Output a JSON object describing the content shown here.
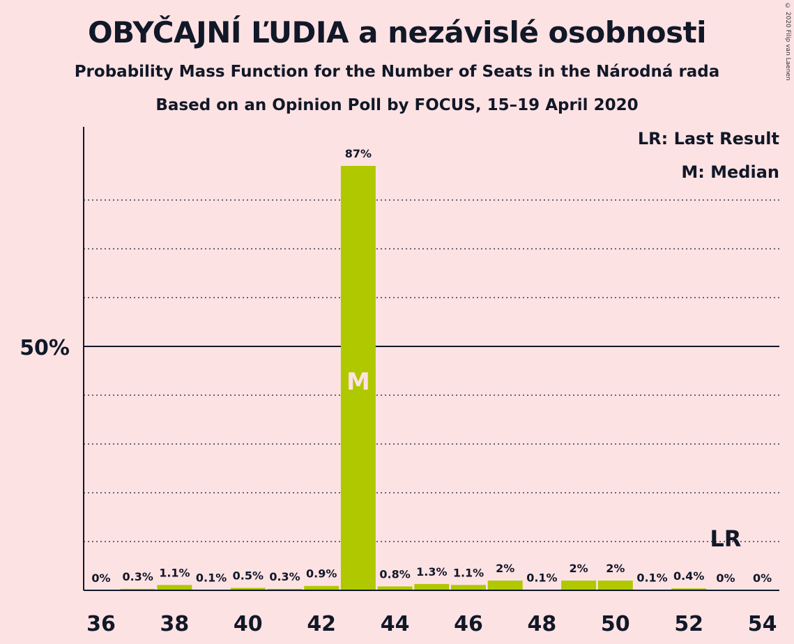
{
  "title": "OBYČAJNÍ ĽUDIA a nezávislé osobnosti",
  "subtitle1": "Probability Mass Function for the Number of Seats in the Národná rada",
  "subtitle2": "Based on an Opinion Poll by FOCUS, 15–19 April 2020",
  "copyright": "© 2020 Filip van Laenen",
  "legend": {
    "last_result": "LR: Last Result",
    "median": "M: Median"
  },
  "colors": {
    "background": "#fde2e4",
    "bar": "#b0c800",
    "text": "#111827",
    "median_marker": "#fde2e4"
  },
  "chart_data": {
    "type": "bar",
    "x": [
      36,
      37,
      38,
      39,
      40,
      41,
      42,
      43,
      44,
      45,
      46,
      47,
      48,
      49,
      50,
      51,
      52,
      53,
      54
    ],
    "values": [
      0,
      0.3,
      1.1,
      0.1,
      0.5,
      0.3,
      0.9,
      87,
      0.8,
      1.3,
      1.1,
      2,
      0.1,
      2,
      2,
      0.1,
      0.4,
      0,
      0
    ],
    "value_labels": [
      "0%",
      "0.3%",
      "1.1%",
      "0.1%",
      "0.5%",
      "0.3%",
      "0.9%",
      "87%",
      "0.8%",
      "1.3%",
      "1.1%",
      "2%",
      "0.1%",
      "2%",
      "2%",
      "0.1%",
      "0.4%",
      "0%",
      "0%"
    ],
    "x_tick_labels": [
      "36",
      "38",
      "40",
      "42",
      "44",
      "46",
      "48",
      "50",
      "52",
      "54"
    ],
    "y_tick_label": "50%",
    "ylim": [
      0,
      95
    ],
    "gridlines": [
      10,
      20,
      30,
      40,
      60,
      70,
      80
    ],
    "solid_line": 50,
    "median_seat": 43,
    "median_marker": "M",
    "last_result_seat": 53,
    "last_result_marker": "LR",
    "grid": true,
    "legend_position": "top-right"
  }
}
